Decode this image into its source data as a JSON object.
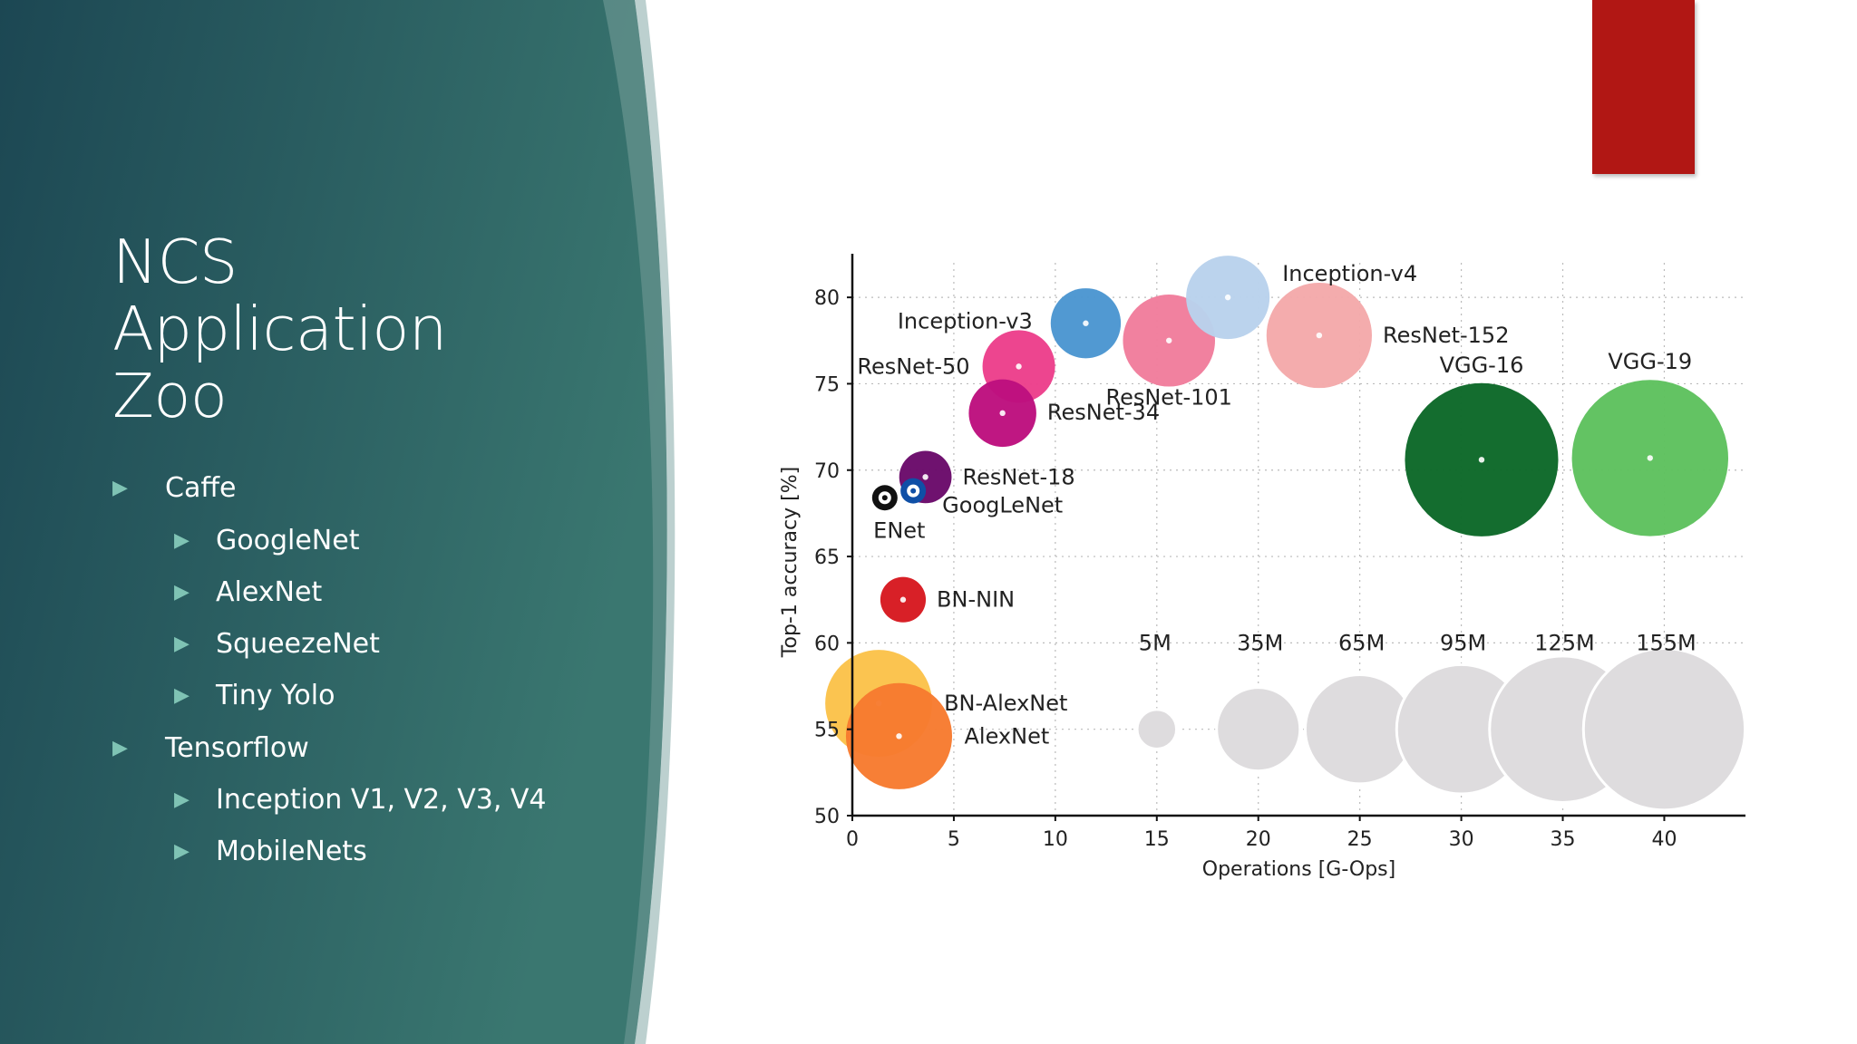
{
  "slide": {
    "title_lines": [
      "NCS",
      "Application",
      "Zoo"
    ],
    "bullets": [
      {
        "text": "Caffe",
        "level": 1
      },
      {
        "text": "GoogleNet",
        "level": 2
      },
      {
        "text": "AlexNet",
        "level": 2
      },
      {
        "text": "SqueezeNet",
        "level": 2
      },
      {
        "text": "Tiny Yolo",
        "level": 2
      },
      {
        "text": "Tensorflow",
        "level": 1
      },
      {
        "text": "Inception V1, V2, V3, V4",
        "level": 2
      },
      {
        "text": "MobileNets",
        "level": 2
      }
    ],
    "bullet_icon": "triangle-right-icon"
  },
  "colors": {
    "panel_dark": "#1c4753",
    "panel_light": "#3a7770",
    "accent_bar": "#b11714",
    "bullet_arrow": "#7fc3b4"
  },
  "chart_data": {
    "type": "scatter",
    "subtype": "bubble",
    "xlabel": "Operations [G-Ops]",
    "ylabel": "Top-1 accuracy [%]",
    "xlim": [
      0,
      44
    ],
    "ylim": [
      50,
      82
    ],
    "xticks": [
      0,
      5,
      10,
      15,
      20,
      25,
      30,
      35,
      40
    ],
    "yticks": [
      50,
      55,
      60,
      65,
      70,
      75,
      80
    ],
    "grid": true,
    "points": [
      {
        "name": "Inception-v4",
        "ops": 18.5,
        "acc": 80.0,
        "params_m": 35,
        "color": "#b9d2ec",
        "label_pos": "right-up"
      },
      {
        "name": "Inception-v3",
        "ops": 11.5,
        "acc": 78.5,
        "params_m": 23,
        "color": "#4b96d1",
        "label_pos": "left-up"
      },
      {
        "name": "ResNet-152",
        "ops": 23.0,
        "acc": 77.8,
        "params_m": 60,
        "color": "#f4a9aa",
        "label_pos": "right"
      },
      {
        "name": "ResNet-101",
        "ops": 15.6,
        "acc": 77.5,
        "params_m": 44,
        "color": "#f17d9c",
        "label_pos": "below"
      },
      {
        "name": "ResNet-50",
        "ops": 8.2,
        "acc": 76.0,
        "params_m": 25,
        "color": "#ec3f8b",
        "label_pos": "left"
      },
      {
        "name": "ResNet-34",
        "ops": 7.4,
        "acc": 73.3,
        "params_m": 21,
        "color": "#bd0f7e",
        "label_pos": "right"
      },
      {
        "name": "ResNet-18",
        "ops": 3.6,
        "acc": 69.6,
        "params_m": 11,
        "color": "#6a0a6a",
        "label_pos": "right"
      },
      {
        "name": "GoogLeNet",
        "ops": 3.0,
        "acc": 68.8,
        "params_m": 7,
        "color": "#0f4fa6",
        "ring": true,
        "label_pos": "below-right"
      },
      {
        "name": "ENet",
        "ops": 1.6,
        "acc": 68.4,
        "params_m": 0.4,
        "color": "#111111",
        "ring": true,
        "label_pos": "below"
      },
      {
        "name": "BN-NIN",
        "ops": 2.5,
        "acc": 62.5,
        "params_m": 7.5,
        "color": "#d71920",
        "label_pos": "right"
      },
      {
        "name": "VGG-16",
        "ops": 31.0,
        "acc": 70.6,
        "params_m": 138,
        "color": "#0c6828",
        "label_pos": "above"
      },
      {
        "name": "VGG-19",
        "ops": 39.3,
        "acc": 70.7,
        "params_m": 144,
        "color": "#5ec15e",
        "label_pos": "above"
      },
      {
        "name": "BN-AlexNet",
        "ops": 1.3,
        "acc": 56.5,
        "params_m": 62,
        "color": "#fbc24a",
        "label_pos": "right"
      },
      {
        "name": "AlexNet",
        "ops": 2.3,
        "acc": 54.6,
        "params_m": 61,
        "color": "#f77b30",
        "label_pos": "right"
      }
    ],
    "size_legend": [
      {
        "label": "5M",
        "ops": 15,
        "params_m": 5
      },
      {
        "label": "35M",
        "ops": 20,
        "params_m": 35
      },
      {
        "label": "65M",
        "ops": 25,
        "params_m": 65
      },
      {
        "label": "95M",
        "ops": 30,
        "params_m": 95
      },
      {
        "label": "125M",
        "ops": 35,
        "params_m": 125
      },
      {
        "label": "155M",
        "ops": 40,
        "params_m": 155
      }
    ],
    "size_legend_acc": 55,
    "size_legend_label_acc": 60
  }
}
